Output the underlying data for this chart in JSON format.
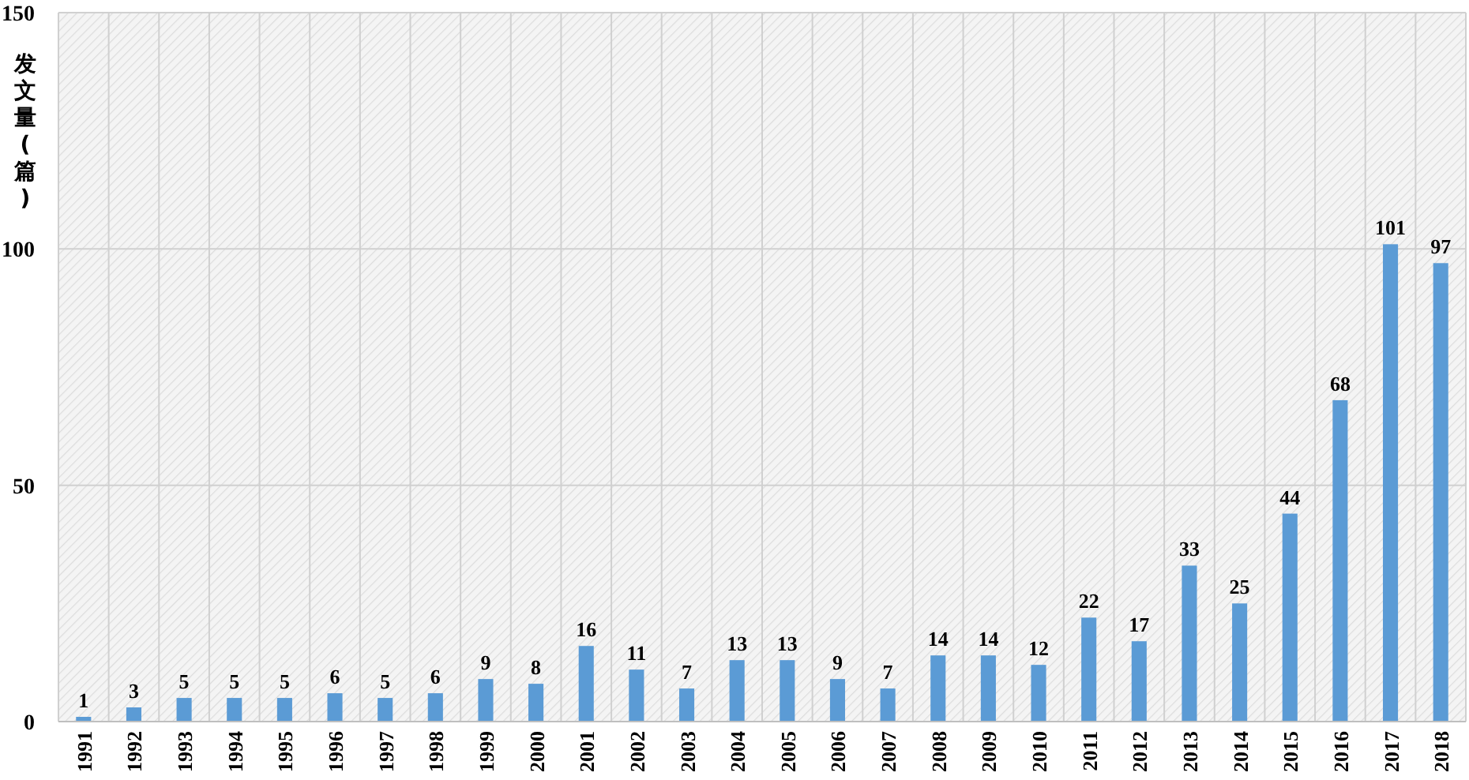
{
  "chart_data": {
    "type": "bar",
    "ylabel": "发文量(篇)",
    "categories": [
      "1991",
      "1992",
      "1993",
      "1994",
      "1995",
      "1996",
      "1997",
      "1998",
      "1999",
      "2000",
      "2001",
      "2002",
      "2003",
      "2004",
      "2005",
      "2006",
      "2007",
      "2008",
      "2009",
      "2010",
      "2011",
      "2012",
      "2013",
      "2014",
      "2015",
      "2016",
      "2017",
      "2018"
    ],
    "values": [
      1,
      3,
      5,
      5,
      5,
      6,
      5,
      6,
      9,
      8,
      16,
      11,
      7,
      13,
      13,
      9,
      7,
      14,
      14,
      12,
      22,
      17,
      33,
      25,
      44,
      68,
      101,
      97
    ],
    "color": "#5b9bd5",
    "ylim": [
      0,
      150
    ],
    "yticks": [
      0,
      50,
      100,
      150
    ],
    "grid": true,
    "data_labels": true
  }
}
